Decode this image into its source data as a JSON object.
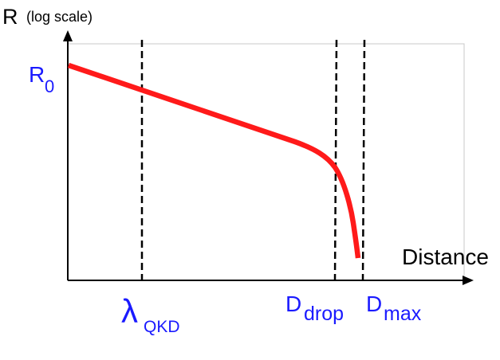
{
  "labels": {
    "y_axis_main": "R",
    "y_axis_sub": "(log scale)",
    "x_axis": "Distance",
    "r0_main": "R",
    "r0_sub": "0",
    "lambda_main": "λ",
    "lambda_sub": "QKD",
    "ddrop_main": "D",
    "ddrop_sub": "drop",
    "dmax_main": "D",
    "dmax_sub": "max"
  },
  "colors": {
    "curve": "#ff1a1a",
    "label_blue": "#1a1aff",
    "axis": "#000000",
    "frame": "#c8c8c8"
  }
}
